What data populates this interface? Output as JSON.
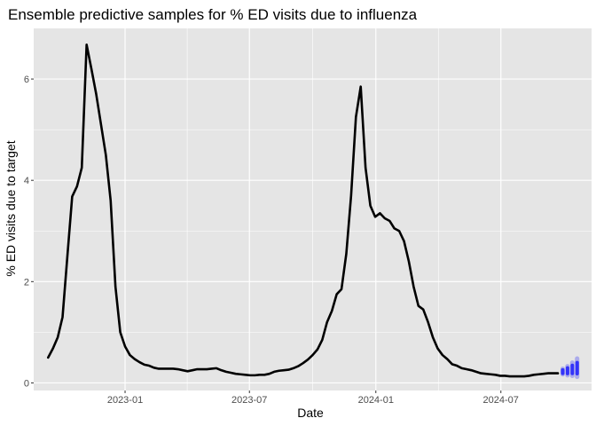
{
  "chart_data": {
    "type": "line",
    "title": "Ensemble predictive samples for % ED visits due to influenza",
    "xlabel": "Date",
    "ylabel": "% ED visits due to target",
    "xlim": [
      "2022-08-21",
      "2024-11-10"
    ],
    "ylim": [
      -0.15,
      7.0
    ],
    "x_ticks": [
      {
        "date": "2023-01-01",
        "label": "2023-01"
      },
      {
        "date": "2023-07-01",
        "label": "2023-07"
      },
      {
        "date": "2024-01-01",
        "label": "2024-01"
      },
      {
        "date": "2024-07-01",
        "label": "2024-07"
      }
    ],
    "y_ticks": [
      0,
      2,
      4,
      6
    ],
    "grid": true,
    "legend": "none",
    "colors": {
      "panel": "#e5e5e5",
      "grid": "#ffffff",
      "observed": "#000000",
      "samples": "#0000ff"
    },
    "series": [
      {
        "x": [
          "2022-09-11",
          "2022-09-18",
          "2022-09-25",
          "2022-10-02",
          "2022-10-09",
          "2022-10-16",
          "2022-10-23",
          "2022-10-30",
          "2022-11-06",
          "2022-11-13",
          "2022-11-20",
          "2022-11-27",
          "2022-12-04",
          "2022-12-11",
          "2022-12-18",
          "2022-12-25",
          "2023-01-01",
          "2023-01-08",
          "2023-01-15",
          "2023-01-22",
          "2023-01-29",
          "2023-02-05",
          "2023-02-12",
          "2023-02-19",
          "2023-02-26",
          "2023-03-05",
          "2023-03-12",
          "2023-03-19",
          "2023-03-26",
          "2023-04-02",
          "2023-04-09",
          "2023-04-16",
          "2023-04-23",
          "2023-04-30",
          "2023-05-07",
          "2023-05-14",
          "2023-05-21",
          "2023-05-28",
          "2023-06-04",
          "2023-06-11",
          "2023-06-18",
          "2023-06-25",
          "2023-07-02",
          "2023-07-09",
          "2023-07-16",
          "2023-07-23",
          "2023-07-30",
          "2023-08-06",
          "2023-08-13",
          "2023-08-20",
          "2023-08-27",
          "2023-09-03",
          "2023-09-10",
          "2023-09-17",
          "2023-09-24",
          "2023-10-01",
          "2023-10-08",
          "2023-10-15",
          "2023-10-22",
          "2023-10-29",
          "2023-11-05",
          "2023-11-12",
          "2023-11-19",
          "2023-11-26",
          "2023-12-03",
          "2023-12-10",
          "2023-12-17",
          "2023-12-24",
          "2023-12-31",
          "2024-01-07",
          "2024-01-14",
          "2024-01-21",
          "2024-01-28",
          "2024-02-04",
          "2024-02-11",
          "2024-02-18",
          "2024-02-25",
          "2024-03-03",
          "2024-03-10",
          "2024-03-17",
          "2024-03-24",
          "2024-03-31",
          "2024-04-07",
          "2024-04-14",
          "2024-04-21",
          "2024-04-28",
          "2024-05-05",
          "2024-05-12",
          "2024-05-19",
          "2024-05-26",
          "2024-06-02",
          "2024-06-09",
          "2024-06-16",
          "2024-06-23",
          "2024-06-30",
          "2024-07-07",
          "2024-07-14",
          "2024-07-21",
          "2024-07-28",
          "2024-08-04",
          "2024-08-11",
          "2024-08-18",
          "2024-08-25",
          "2024-09-01",
          "2024-09-08",
          "2024-09-15",
          "2024-09-22"
        ],
        "y": [
          0.5,
          0.68,
          0.9,
          1.3,
          2.5,
          3.68,
          3.88,
          4.25,
          6.68,
          6.2,
          5.7,
          5.1,
          4.5,
          3.6,
          1.9,
          1.0,
          0.72,
          0.55,
          0.47,
          0.41,
          0.36,
          0.34,
          0.3,
          0.28,
          0.28,
          0.28,
          0.28,
          0.27,
          0.25,
          0.23,
          0.25,
          0.27,
          0.27,
          0.27,
          0.28,
          0.29,
          0.25,
          0.22,
          0.2,
          0.18,
          0.17,
          0.16,
          0.15,
          0.15,
          0.16,
          0.16,
          0.18,
          0.22,
          0.24,
          0.25,
          0.26,
          0.29,
          0.33,
          0.39,
          0.46,
          0.55,
          0.66,
          0.85,
          1.2,
          1.42,
          1.75,
          1.85,
          2.55,
          3.7,
          5.25,
          5.85,
          4.25,
          3.5,
          3.28,
          3.35,
          3.25,
          3.2,
          3.05,
          3.0,
          2.8,
          2.4,
          1.9,
          1.52,
          1.45,
          1.2,
          0.9,
          0.68,
          0.55,
          0.47,
          0.37,
          0.34,
          0.29,
          0.27,
          0.25,
          0.22,
          0.19,
          0.18,
          0.17,
          0.16,
          0.14,
          0.14,
          0.13,
          0.13,
          0.13,
          0.13,
          0.14,
          0.16,
          0.17,
          0.18,
          0.19,
          0.19,
          0.19
        ]
      },
      {
        "x": [
          "2024-09-29",
          "2024-10-06",
          "2024-10-13",
          "2024-10-20"
        ],
        "low": [
          0.17,
          0.15,
          0.14,
          0.12
        ],
        "high": [
          0.28,
          0.33,
          0.4,
          0.48
        ],
        "mid": [
          0.22,
          0.24,
          0.26,
          0.28
        ]
      }
    ]
  }
}
